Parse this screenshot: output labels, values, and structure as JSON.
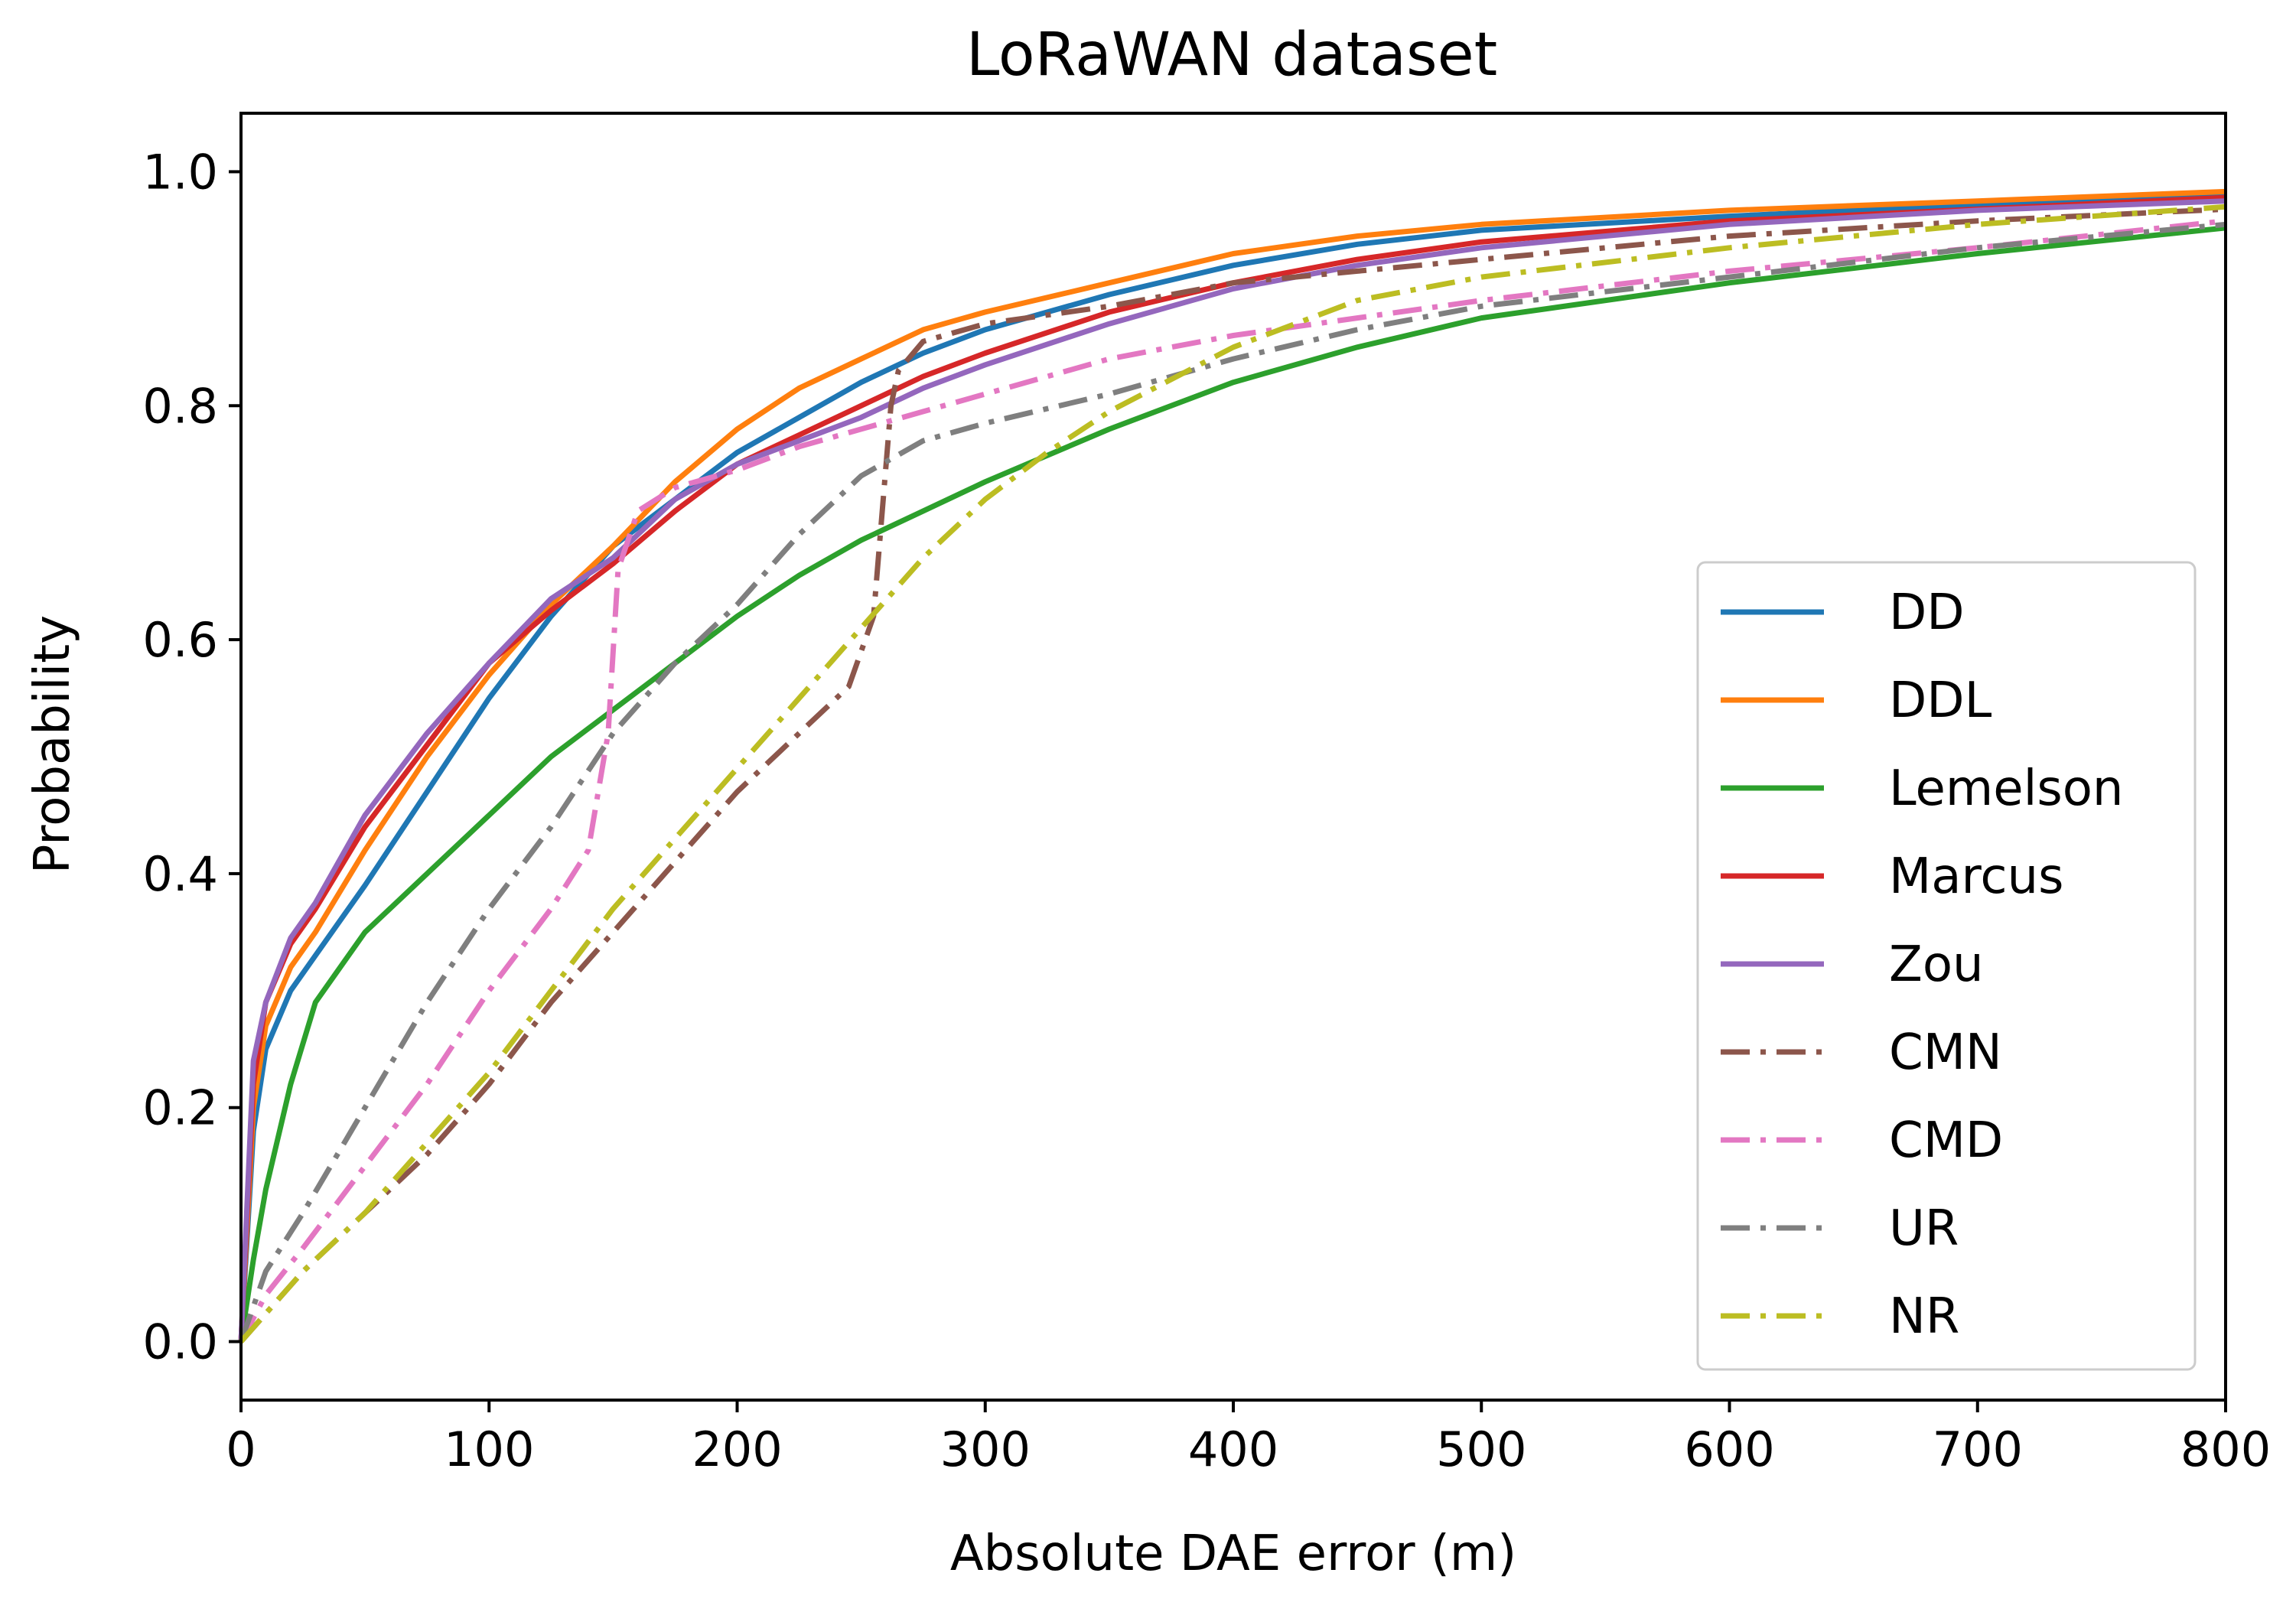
{
  "chart_data": {
    "type": "line",
    "title": "LoRaWAN dataset",
    "xlabel": "Absolute DAE error (m)",
    "ylabel": "Probability",
    "xlim": [
      0,
      800
    ],
    "ylim": [
      -0.05,
      1.05
    ],
    "xticks": [
      0,
      100,
      200,
      300,
      400,
      500,
      600,
      700,
      800
    ],
    "yticks": [
      0.0,
      0.2,
      0.4,
      0.6,
      0.8,
      1.0
    ],
    "xtick_labels": [
      "0",
      "100",
      "200",
      "300",
      "400",
      "500",
      "600",
      "700",
      "800"
    ],
    "ytick_labels": [
      "0.0",
      "0.2",
      "0.4",
      "0.6",
      "0.8",
      "1.0"
    ],
    "grid": false,
    "legend_position": "lower-right",
    "series": [
      {
        "name": "DD",
        "color": "#1f77b4",
        "style": "solid",
        "x": [
          0,
          5,
          10,
          20,
          30,
          50,
          75,
          100,
          125,
          150,
          175,
          200,
          225,
          250,
          275,
          300,
          350,
          400,
          450,
          500,
          600,
          700,
          800
        ],
        "y": [
          0,
          0.18,
          0.25,
          0.3,
          0.33,
          0.39,
          0.47,
          0.55,
          0.62,
          0.68,
          0.72,
          0.76,
          0.79,
          0.82,
          0.845,
          0.865,
          0.895,
          0.92,
          0.938,
          0.95,
          0.962,
          0.972,
          0.98
        ]
      },
      {
        "name": "DDL",
        "color": "#ff7f0e",
        "style": "solid",
        "x": [
          0,
          5,
          10,
          20,
          30,
          50,
          75,
          100,
          125,
          150,
          175,
          200,
          225,
          250,
          275,
          300,
          350,
          400,
          450,
          500,
          600,
          700,
          800
        ],
        "y": [
          0,
          0.2,
          0.27,
          0.32,
          0.35,
          0.42,
          0.5,
          0.57,
          0.63,
          0.68,
          0.735,
          0.78,
          0.815,
          0.84,
          0.865,
          0.88,
          0.905,
          0.93,
          0.945,
          0.955,
          0.967,
          0.975,
          0.983
        ]
      },
      {
        "name": "Lemelson",
        "color": "#2ca02c",
        "style": "solid",
        "x": [
          0,
          5,
          10,
          20,
          30,
          50,
          75,
          100,
          125,
          150,
          175,
          200,
          225,
          250,
          275,
          300,
          350,
          400,
          450,
          500,
          600,
          700,
          800
        ],
        "y": [
          0,
          0.07,
          0.13,
          0.22,
          0.29,
          0.35,
          0.4,
          0.45,
          0.5,
          0.54,
          0.58,
          0.62,
          0.655,
          0.685,
          0.71,
          0.735,
          0.78,
          0.82,
          0.85,
          0.875,
          0.905,
          0.93,
          0.952
        ]
      },
      {
        "name": "Marcus",
        "color": "#d62728",
        "style": "solid",
        "x": [
          0,
          5,
          10,
          20,
          30,
          50,
          75,
          100,
          125,
          150,
          175,
          200,
          225,
          250,
          275,
          300,
          350,
          400,
          450,
          500,
          600,
          700,
          800
        ],
        "y": [
          0,
          0.22,
          0.29,
          0.34,
          0.37,
          0.44,
          0.51,
          0.58,
          0.625,
          0.665,
          0.71,
          0.75,
          0.775,
          0.8,
          0.825,
          0.845,
          0.88,
          0.905,
          0.925,
          0.94,
          0.958,
          0.968,
          0.978
        ]
      },
      {
        "name": "Zou",
        "color": "#9467bd",
        "style": "solid",
        "x": [
          0,
          5,
          10,
          20,
          30,
          50,
          75,
          100,
          125,
          150,
          175,
          200,
          225,
          250,
          275,
          300,
          350,
          400,
          450,
          500,
          600,
          700,
          800
        ],
        "y": [
          0,
          0.24,
          0.29,
          0.345,
          0.375,
          0.45,
          0.52,
          0.58,
          0.635,
          0.67,
          0.72,
          0.75,
          0.77,
          0.79,
          0.815,
          0.835,
          0.87,
          0.9,
          0.92,
          0.935,
          0.955,
          0.967,
          0.975
        ]
      },
      {
        "name": "CMN",
        "color": "#8c564b",
        "style": "dashdot",
        "x": [
          0,
          25,
          50,
          75,
          100,
          125,
          150,
          175,
          200,
          225,
          245,
          255,
          262,
          265,
          275,
          300,
          350,
          400,
          450,
          500,
          600,
          700,
          800
        ],
        "y": [
          0,
          0.06,
          0.11,
          0.16,
          0.22,
          0.29,
          0.35,
          0.41,
          0.47,
          0.52,
          0.56,
          0.62,
          0.8,
          0.83,
          0.855,
          0.87,
          0.885,
          0.905,
          0.915,
          0.925,
          0.945,
          0.958,
          0.968
        ]
      },
      {
        "name": "CMD",
        "color": "#e377c2",
        "style": "dashdot",
        "x": [
          0,
          10,
          25,
          50,
          75,
          100,
          125,
          140,
          148,
          152,
          160,
          175,
          200,
          225,
          250,
          275,
          300,
          350,
          400,
          450,
          500,
          600,
          700,
          800
        ],
        "y": [
          0,
          0.04,
          0.08,
          0.15,
          0.22,
          0.3,
          0.37,
          0.42,
          0.52,
          0.66,
          0.71,
          0.73,
          0.745,
          0.765,
          0.78,
          0.795,
          0.81,
          0.84,
          0.86,
          0.875,
          0.89,
          0.915,
          0.935,
          0.958
        ]
      },
      {
        "name": "UR",
        "color": "#7f7f7f",
        "style": "dashdot",
        "x": [
          0,
          10,
          25,
          50,
          75,
          100,
          125,
          150,
          175,
          200,
          225,
          250,
          275,
          300,
          350,
          400,
          450,
          500,
          600,
          700,
          800
        ],
        "y": [
          0,
          0.06,
          0.11,
          0.2,
          0.29,
          0.37,
          0.44,
          0.52,
          0.58,
          0.63,
          0.69,
          0.74,
          0.77,
          0.785,
          0.81,
          0.84,
          0.865,
          0.885,
          0.91,
          0.935,
          0.955
        ]
      },
      {
        "name": "NR",
        "color": "#bcbd22",
        "style": "dashdot",
        "x": [
          0,
          25,
          50,
          75,
          100,
          125,
          150,
          175,
          200,
          225,
          250,
          275,
          300,
          325,
          350,
          400,
          450,
          500,
          600,
          700,
          800
        ],
        "y": [
          0,
          0.06,
          0.11,
          0.17,
          0.23,
          0.3,
          0.37,
          0.43,
          0.49,
          0.55,
          0.61,
          0.67,
          0.72,
          0.76,
          0.795,
          0.85,
          0.89,
          0.91,
          0.935,
          0.955,
          0.97
        ]
      }
    ]
  }
}
